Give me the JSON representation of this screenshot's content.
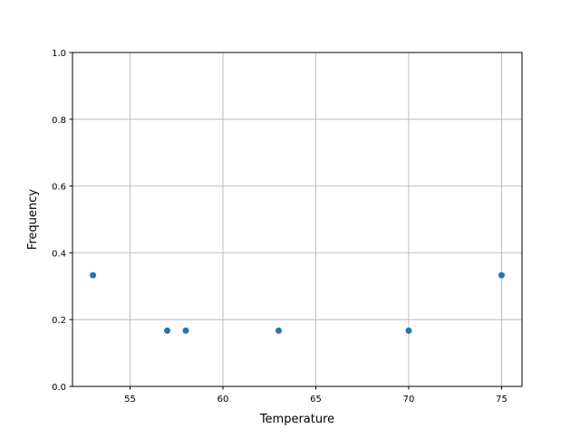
{
  "chart_data": {
    "type": "scatter",
    "title": "",
    "xlabel": "Temperature",
    "ylabel": "Frequency",
    "x": [
      53,
      57,
      58,
      63,
      70,
      75
    ],
    "y": [
      0.333,
      0.167,
      0.167,
      0.167,
      0.167,
      0.333
    ],
    "xlim": [
      51.9,
      76.1
    ],
    "ylim": [
      0.0,
      1.0
    ],
    "xticks": [
      "55",
      "60",
      "65",
      "70",
      "75"
    ],
    "yticks": [
      "0.0",
      "0.2",
      "0.4",
      "0.6",
      "0.8",
      "1.0"
    ],
    "grid": true,
    "marker_color": "#1f77b4"
  }
}
